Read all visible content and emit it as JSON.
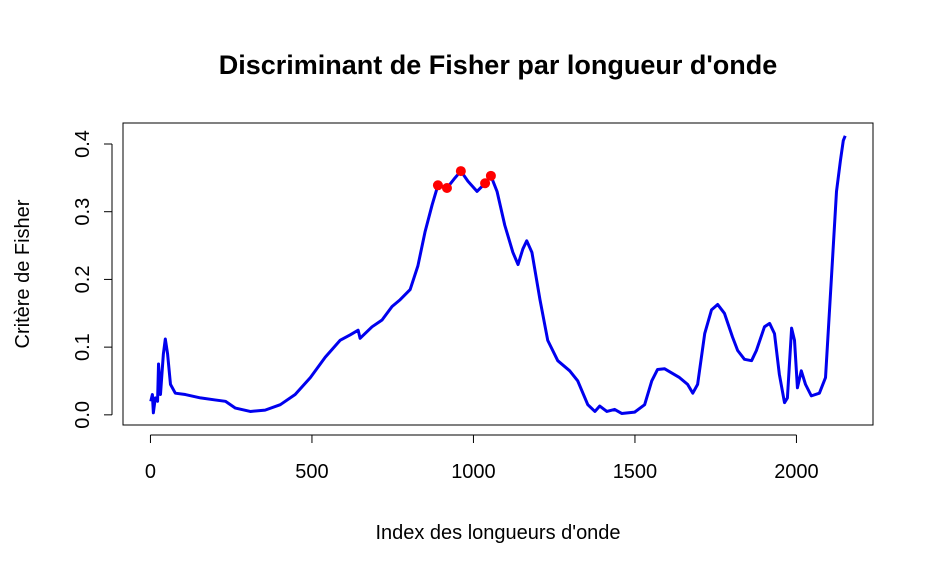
{
  "chart_data": {
    "type": "line",
    "title": "Discriminant de Fisher par longueur d'onde",
    "xlabel": "Index des longueurs d'onde",
    "ylabel": "Critère de Fisher",
    "xlim": [
      -85,
      2237
    ],
    "ylim": [
      -0.015,
      0.431
    ],
    "xticks": [
      0,
      500,
      1000,
      1500,
      2000
    ],
    "yticks": [
      {
        "value": 0,
        "label": "0.0"
      },
      0.1,
      0.2,
      0.3,
      0.4
    ],
    "series": [
      {
        "color": "#0000ee",
        "x": [
          1,
          6,
          9,
          15,
          22,
          25,
          31,
          40,
          46,
          53,
          62,
          77,
          108,
          155,
          200,
          232,
          263,
          309,
          355,
          402,
          448,
          495,
          541,
          587,
          618,
          643,
          649,
          686,
          717,
          748,
          773,
          804,
          828,
          850,
          872,
          890,
          918,
          943,
          961,
          983,
          1011,
          1036,
          1054,
          1073,
          1097,
          1122,
          1138,
          1153,
          1165,
          1181,
          1206,
          1230,
          1261,
          1298,
          1323,
          1354,
          1376,
          1391,
          1413,
          1437,
          1459,
          1499,
          1530,
          1552,
          1570,
          1592,
          1638,
          1663,
          1679,
          1694,
          1716,
          1737,
          1756,
          1777,
          1802,
          1818,
          1839,
          1861,
          1876,
          1901,
          1917,
          1932,
          1947,
          1963,
          1972,
          1985,
          1994,
          2003,
          2015,
          2028,
          2046,
          2071,
          2090,
          2108,
          2124,
          2136,
          2145,
          2151
        ],
        "values": [
          0.02,
          0.03,
          0.003,
          0.025,
          0.02,
          0.075,
          0.03,
          0.09,
          0.112,
          0.09,
          0.045,
          0.032,
          0.03,
          0.025,
          0.022,
          0.02,
          0.01,
          0.005,
          0.007,
          0.015,
          0.03,
          0.055,
          0.085,
          0.11,
          0.118,
          0.125,
          0.113,
          0.13,
          0.14,
          0.16,
          0.17,
          0.185,
          0.22,
          0.27,
          0.31,
          0.339,
          0.335,
          0.35,
          0.36,
          0.345,
          0.33,
          0.342,
          0.353,
          0.33,
          0.28,
          0.24,
          0.222,
          0.245,
          0.257,
          0.24,
          0.17,
          0.11,
          0.08,
          0.065,
          0.05,
          0.015,
          0.005,
          0.013,
          0.005,
          0.008,
          0.002,
          0.004,
          0.015,
          0.05,
          0.067,
          0.068,
          0.055,
          0.045,
          0.032,
          0.045,
          0.12,
          0.155,
          0.163,
          0.15,
          0.115,
          0.095,
          0.082,
          0.08,
          0.095,
          0.13,
          0.135,
          0.12,
          0.06,
          0.018,
          0.025,
          0.128,
          0.11,
          0.04,
          0.065,
          0.045,
          0.028,
          0.032,
          0.055,
          0.2,
          0.33,
          0.375,
          0.405,
          0.412
        ]
      }
    ],
    "points": {
      "color": "#ff0000",
      "x": [
        890,
        918,
        961,
        1036,
        1054
      ],
      "values": [
        0.339,
        0.335,
        0.36,
        0.342,
        0.353
      ]
    }
  }
}
